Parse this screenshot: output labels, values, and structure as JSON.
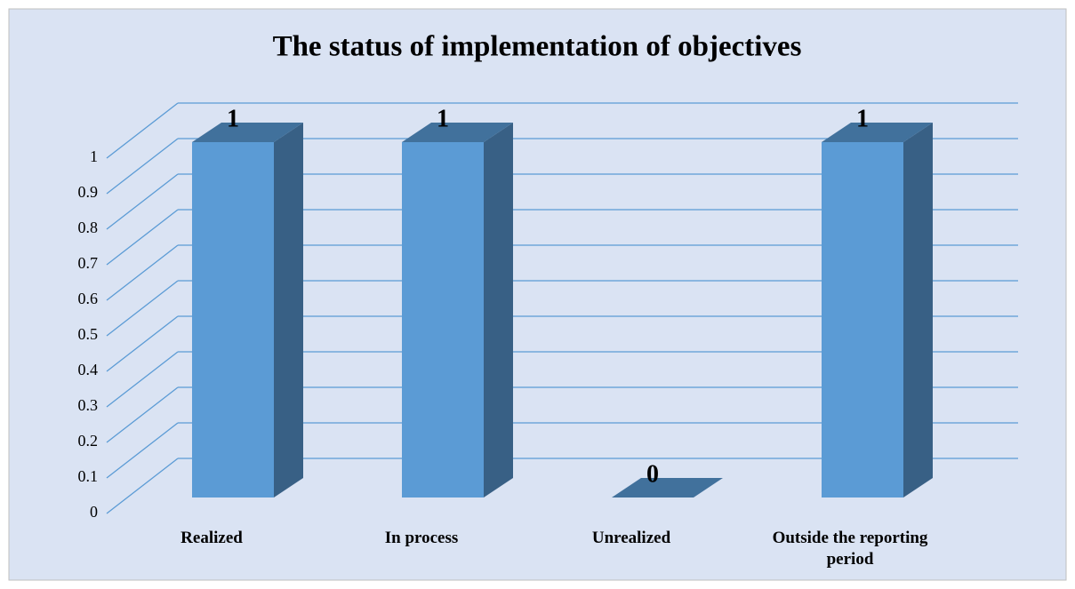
{
  "chart_data": {
    "type": "bar3d",
    "title": "The status of implementation of objectives",
    "categories": [
      "Realized",
      "In process",
      "Unrealized",
      "Outside the reporting period"
    ],
    "values": [
      1,
      1,
      0,
      1
    ],
    "color": "#5b9bd5",
    "ylim": [
      0,
      1
    ],
    "yticks": [
      0,
      0.1,
      0.2,
      0.3,
      0.4,
      0.5,
      0.6,
      0.7,
      0.8,
      0.9,
      1
    ],
    "grid": true
  }
}
